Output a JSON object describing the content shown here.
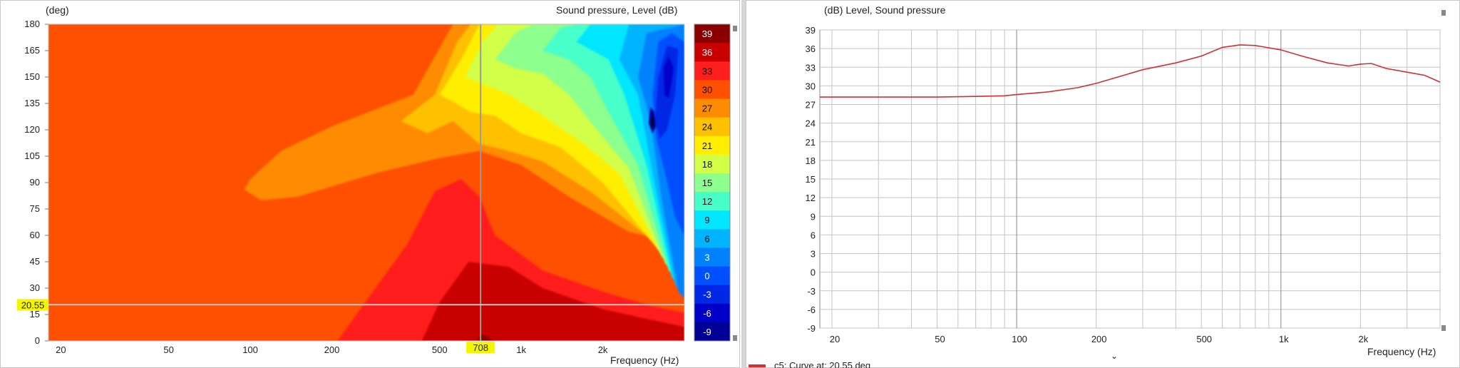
{
  "left_chart": {
    "ylabel": "(deg)",
    "title": "Sound pressure, Level  (dB)",
    "xlabel": "Frequency  (Hz)",
    "cursor_freq_label": "708",
    "cursor_angle_label": "20.55"
  },
  "right_chart": {
    "title": "(dB)  Level, Sound pressure",
    "xlabel": "Frequency  (Hz)",
    "legend_label": "c5: Curve at: 20.55 deg",
    "legend_color": "#d03030"
  },
  "chart_data": [
    {
      "type": "heatmap",
      "title": "Sound pressure, Level  (dB)",
      "xlabel": "Frequency  (Hz)",
      "ylabel": "(deg)",
      "x_scale": "log",
      "xlim": [
        18,
        4000
      ],
      "ylim": [
        0,
        180
      ],
      "x_ticks": [
        20,
        50,
        100,
        200,
        500,
        1000,
        2000
      ],
      "x_tick_labels": [
        "20",
        "50",
        "100",
        "200",
        "500",
        "1k",
        "2k"
      ],
      "y_ticks": [
        0,
        15,
        30,
        45,
        60,
        75,
        90,
        105,
        120,
        135,
        150,
        165,
        180
      ],
      "colorbar_levels": [
        39,
        36,
        33,
        30,
        27,
        24,
        21,
        18,
        15,
        12,
        9,
        6,
        3,
        0,
        -3,
        -6,
        -9
      ],
      "colorbar_colors": [
        "#8a0000",
        "#c80000",
        "#ff1e1e",
        "#ff5000",
        "#ff8c00",
        "#ffc000",
        "#ffee00",
        "#d2ff46",
        "#8cff8c",
        "#46ffc8",
        "#00e6ff",
        "#00b4ff",
        "#0082ff",
        "#0050ff",
        "#0028e6",
        "#0000c8",
        "#000096"
      ],
      "cursor": {
        "frequency": 708,
        "angle": 20.55
      },
      "grid": false
    },
    {
      "type": "line",
      "title": "(dB)  Level, Sound pressure",
      "xlabel": "Frequency  (Hz)",
      "x_scale": "log",
      "xlim": [
        18,
        4000
      ],
      "ylim": [
        -9,
        39
      ],
      "x_ticks": [
        20,
        50,
        100,
        200,
        500,
        1000,
        2000
      ],
      "x_tick_labels": [
        "20",
        "50",
        "100",
        "200",
        "500",
        "1k",
        "2k"
      ],
      "y_ticks": [
        -9,
        -6,
        -3,
        0,
        3,
        6,
        9,
        12,
        15,
        18,
        21,
        24,
        27,
        30,
        33,
        36,
        39
      ],
      "grid": true,
      "series": [
        {
          "name": "c5: Curve at: 20.55 deg",
          "color": "#d03030",
          "x": [
            18,
            30,
            50,
            70,
            90,
            100,
            130,
            170,
            200,
            250,
            300,
            400,
            500,
            600,
            700,
            800,
            1000,
            1200,
            1500,
            1800,
            2000,
            2200,
            2500,
            3000,
            3500,
            4000
          ],
          "y": [
            28.2,
            28.2,
            28.2,
            28.3,
            28.4,
            28.6,
            29.0,
            29.7,
            30.4,
            31.6,
            32.6,
            33.7,
            34.8,
            36.2,
            36.6,
            36.5,
            35.8,
            34.8,
            33.7,
            33.2,
            33.5,
            33.6,
            32.8,
            32.2,
            31.7,
            30.6
          ]
        }
      ]
    }
  ]
}
